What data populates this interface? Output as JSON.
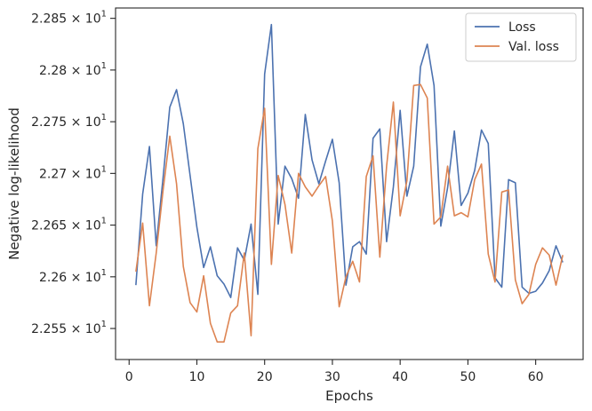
{
  "chart_data": {
    "type": "line",
    "xlabel": "Epochs",
    "ylabel": "Negative log-likelihood",
    "xlim": [
      -2,
      67
    ],
    "ylim": [
      22.52,
      22.86
    ],
    "x_ticks": [
      0,
      10,
      20,
      30,
      40,
      50,
      60
    ],
    "x_tick_labels": [
      "0",
      "10",
      "20",
      "30",
      "40",
      "50",
      "60"
    ],
    "y_ticks": [
      22.55,
      22.6,
      22.65,
      22.7,
      22.75,
      22.8,
      22.85
    ],
    "y_tick_labels": [
      {
        "mantissa": "2.255",
        "exponent": "1"
      },
      {
        "mantissa": "2.26",
        "exponent": "1"
      },
      {
        "mantissa": "2.265",
        "exponent": "1"
      },
      {
        "mantissa": "2.27",
        "exponent": "1"
      },
      {
        "mantissa": "2.275",
        "exponent": "1"
      },
      {
        "mantissa": "2.28",
        "exponent": "1"
      },
      {
        "mantissa": "2.285",
        "exponent": "1"
      }
    ],
    "grid": false,
    "legend_position": "upper-right",
    "x": [
      1,
      2,
      3,
      4,
      5,
      6,
      7,
      8,
      9,
      10,
      11,
      12,
      13,
      14,
      15,
      16,
      17,
      18,
      19,
      20,
      21,
      22,
      23,
      24,
      25,
      26,
      27,
      28,
      29,
      30,
      31,
      32,
      33,
      34,
      35,
      36,
      37,
      38,
      39,
      40,
      41,
      42,
      43,
      44,
      45,
      46,
      47,
      48,
      49,
      50,
      51,
      52,
      53,
      54,
      55,
      56,
      57,
      58,
      59,
      60,
      61,
      62,
      63,
      64
    ],
    "series": [
      {
        "name": "Loss",
        "color": "#4c72b0",
        "values": [
          22.592,
          22.68,
          22.726,
          22.63,
          22.695,
          22.764,
          22.781,
          22.748,
          22.698,
          22.648,
          22.609,
          22.629,
          22.601,
          22.593,
          22.58,
          22.628,
          22.616,
          22.651,
          22.583,
          22.796,
          22.844,
          22.651,
          22.707,
          22.695,
          22.676,
          22.757,
          22.713,
          22.69,
          22.712,
          22.733,
          22.691,
          22.592,
          22.629,
          22.634,
          22.622,
          22.734,
          22.743,
          22.634,
          22.687,
          22.761,
          22.678,
          22.707,
          22.803,
          22.825,
          22.785,
          22.649,
          22.686,
          22.741,
          22.669,
          22.681,
          22.703,
          22.742,
          22.729,
          22.599,
          22.59,
          22.694,
          22.691,
          22.59,
          22.584,
          22.586,
          22.594,
          22.606,
          22.63,
          22.614
        ]
      },
      {
        "name": "Val. loss",
        "color": "#dd8452",
        "values": [
          22.605,
          22.652,
          22.572,
          22.623,
          22.683,
          22.736,
          22.69,
          22.61,
          22.575,
          22.566,
          22.601,
          22.555,
          22.537,
          22.537,
          22.565,
          22.572,
          22.623,
          22.543,
          22.724,
          22.763,
          22.612,
          22.698,
          22.67,
          22.623,
          22.7,
          22.687,
          22.678,
          22.688,
          22.697,
          22.654,
          22.571,
          22.6,
          22.615,
          22.595,
          22.697,
          22.717,
          22.619,
          22.707,
          22.769,
          22.659,
          22.693,
          22.785,
          22.786,
          22.773,
          22.651,
          22.658,
          22.707,
          22.659,
          22.662,
          22.658,
          22.694,
          22.709,
          22.622,
          22.595,
          22.682,
          22.684,
          22.597,
          22.574,
          22.583,
          22.612,
          22.628,
          22.621,
          22.592,
          22.621
        ]
      }
    ]
  }
}
